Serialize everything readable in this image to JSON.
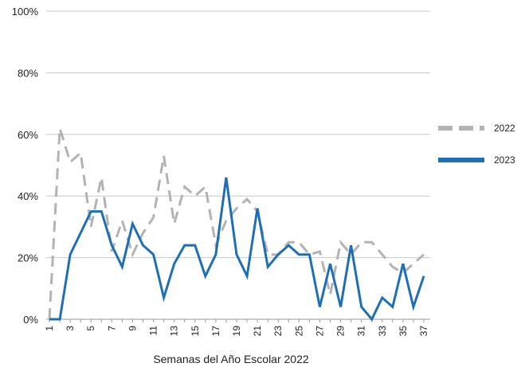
{
  "chart_data": {
    "type": "line",
    "xlabel": "Semanas del Año Escolar 2022",
    "ylabel": "",
    "ylim": [
      0,
      100
    ],
    "y_ticks": [
      "0%",
      "20%",
      "40%",
      "60%",
      "80%",
      "100%"
    ],
    "y_tick_values": [
      0,
      20,
      40,
      60,
      80,
      100
    ],
    "x": [
      1,
      2,
      3,
      4,
      5,
      6,
      7,
      8,
      9,
      10,
      11,
      12,
      13,
      14,
      15,
      16,
      17,
      18,
      19,
      20,
      21,
      22,
      23,
      24,
      25,
      26,
      27,
      28,
      29,
      30,
      31,
      32,
      33,
      34,
      35,
      36,
      37
    ],
    "x_tick_labels": [
      "1",
      "3",
      "5",
      "7",
      "9",
      "11",
      "13",
      "15",
      "17",
      "19",
      "21",
      "23",
      "25",
      "27",
      "29",
      "31",
      "33",
      "35",
      "37"
    ],
    "grid": "horizontal",
    "legend_position": "right",
    "series": [
      {
        "name": "2022",
        "color": "#b3b3b3",
        "style": "dashed",
        "values": [
          0,
          62,
          51,
          54,
          30,
          46,
          22,
          32,
          21,
          28,
          33,
          53,
          31,
          43,
          40,
          43,
          24,
          32,
          36,
          39,
          35,
          21,
          21,
          25,
          25,
          21,
          22,
          8,
          25,
          21,
          25,
          25,
          21,
          17,
          15,
          18,
          21
        ]
      },
      {
        "name": "2023",
        "color": "#1f6fb5",
        "style": "solid",
        "values": [
          0,
          0,
          21,
          28,
          35,
          35,
          24,
          17,
          31,
          24,
          21,
          7,
          18,
          24,
          24,
          14,
          21,
          46,
          21,
          14,
          36,
          17,
          21,
          24,
          21,
          21,
          4,
          18,
          4,
          24,
          4,
          0,
          7,
          4,
          18,
          4,
          14
        ]
      }
    ]
  }
}
